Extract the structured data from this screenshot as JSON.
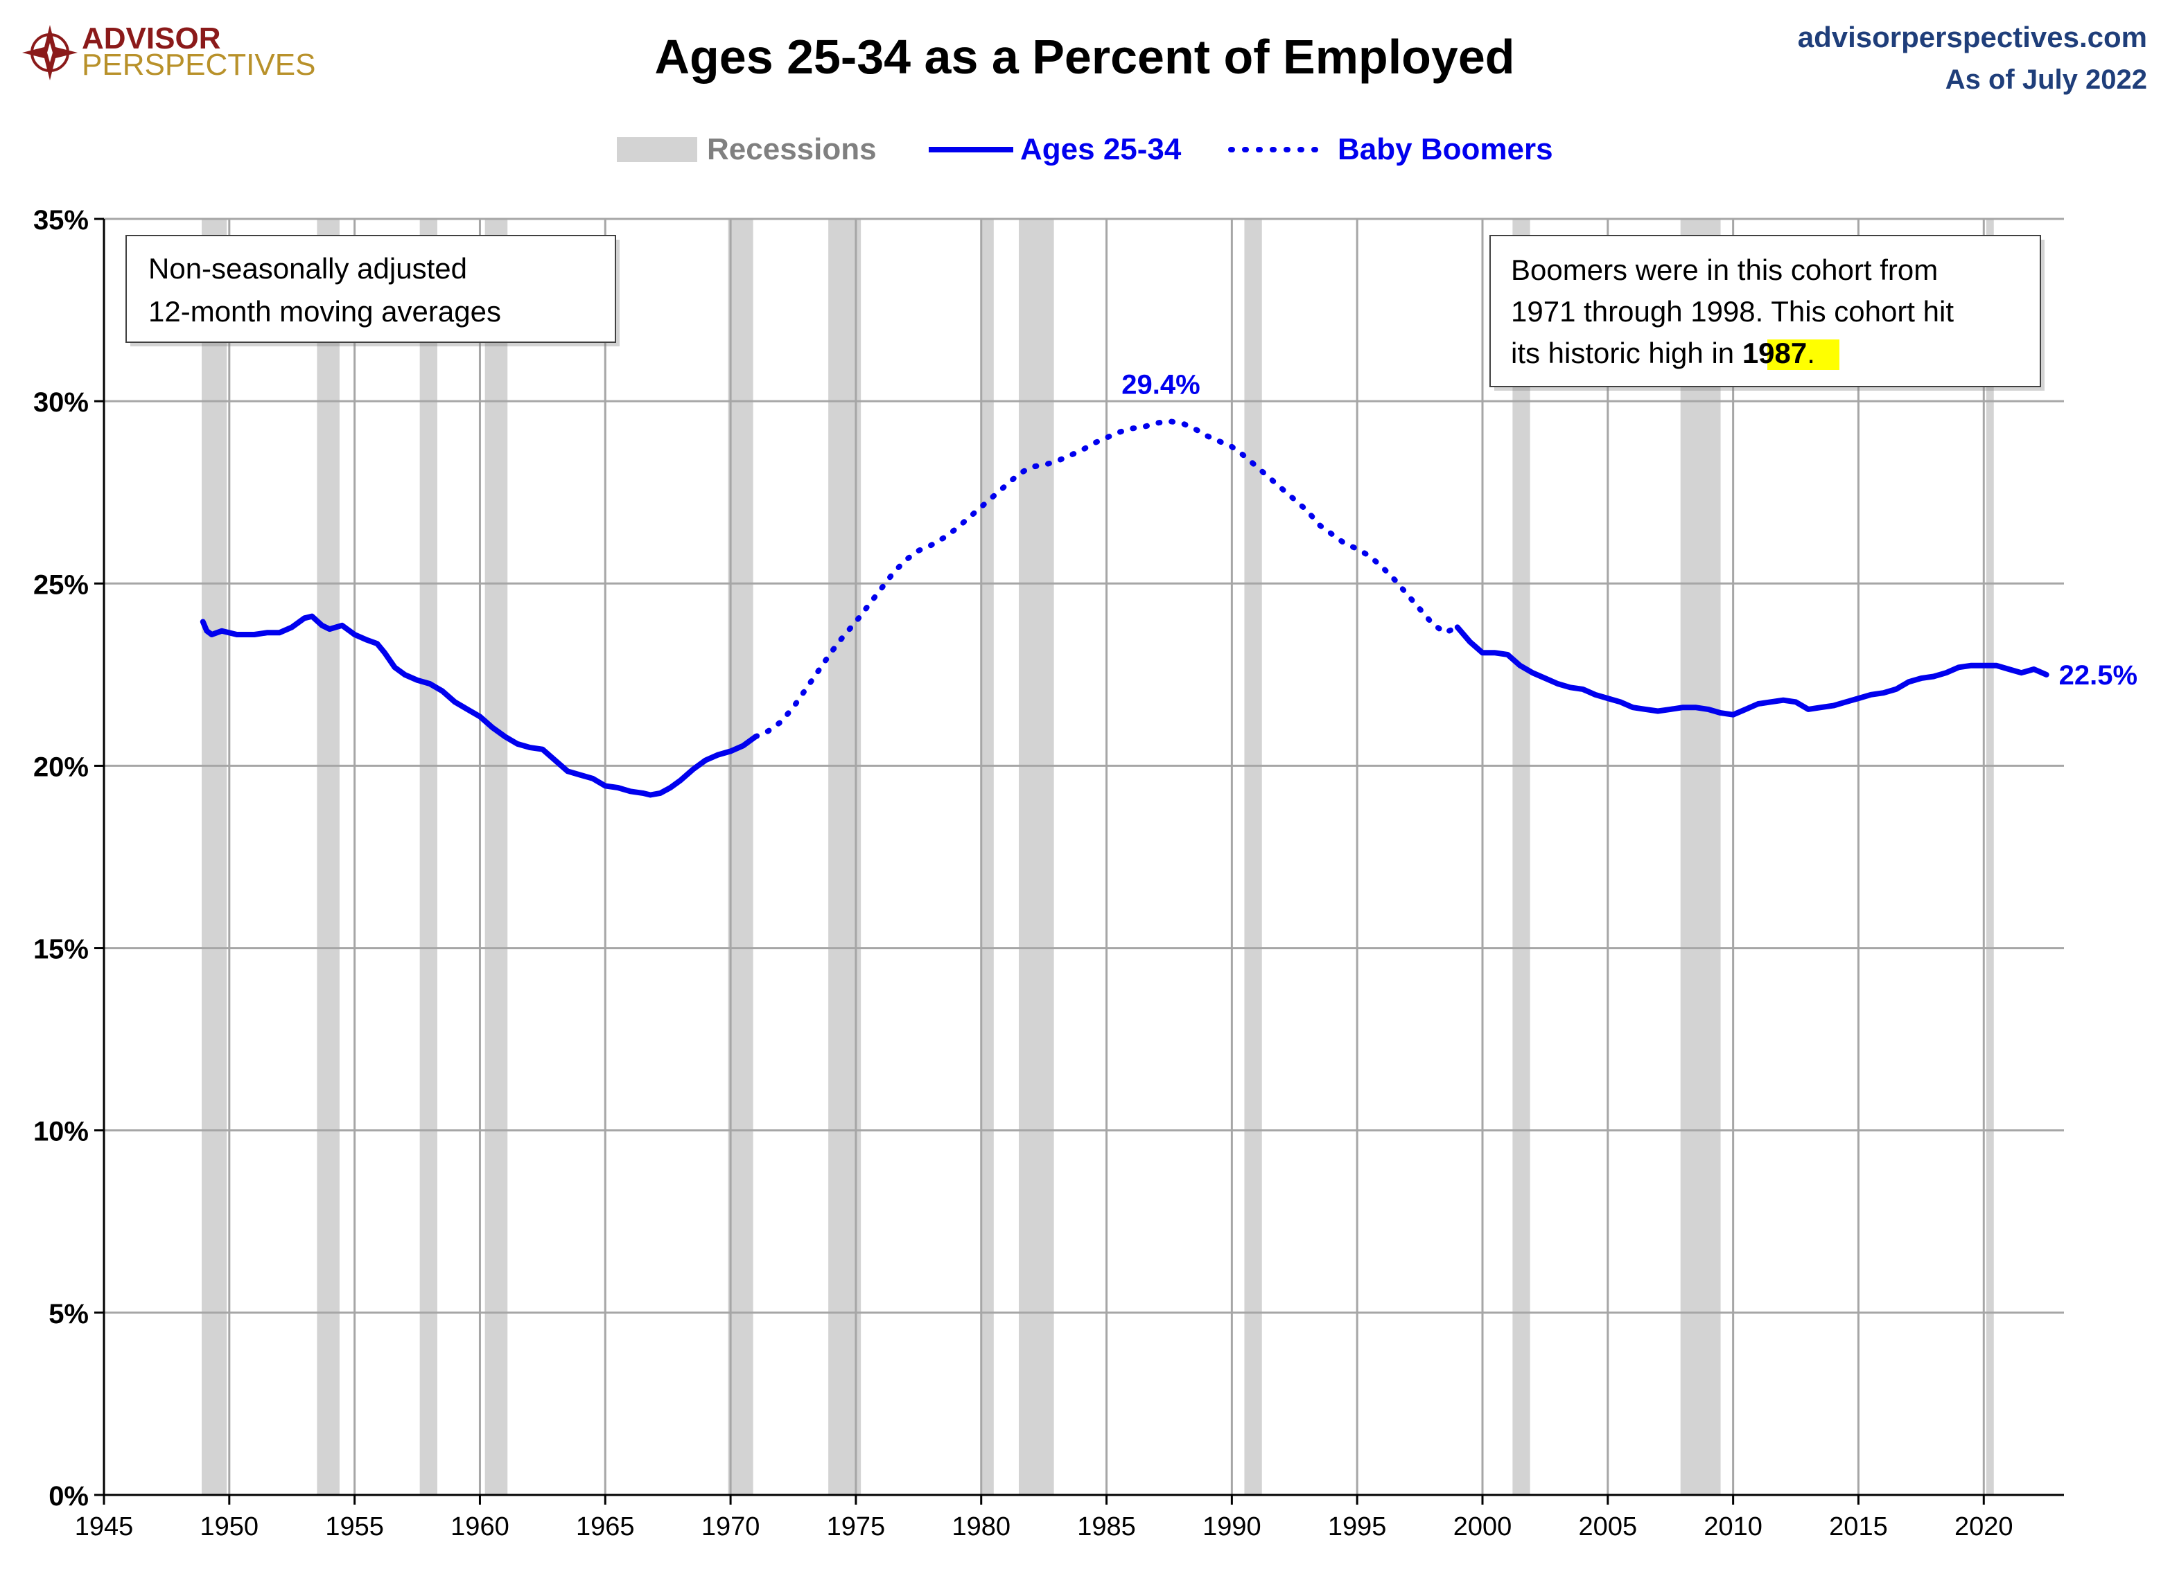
{
  "header": {
    "logo_line1": "ADVISOR",
    "logo_line2": "PERSPECTIVES",
    "site": "advisorperspectives.com",
    "as_of": "As of July 2022"
  },
  "legend": {
    "recessions": "Recessions",
    "ages": "Ages 25-34",
    "boomers": "Baby Boomers"
  },
  "notes": {
    "left_line1": "Non-seasonally adjusted",
    "left_line2": "12-month moving averages",
    "right_line1": "Boomers were in this cohort from",
    "right_line2": "1971 through 1998. This cohort hit",
    "right_line3_prefix": "its historic high in ",
    "right_line3_highlight": "1987",
    "right_line3_suffix": "."
  },
  "colors": {
    "series": "#0000ee",
    "recession": "#d3d3d3",
    "grid": "#a6a6a6",
    "logo_red": "#8b1a1a",
    "logo_gold": "#b8912a",
    "site_blue": "#1f3e7a",
    "highlight": "#ffff00"
  },
  "chart_data": {
    "type": "line",
    "title": "Ages 25-34 as a Percent of Employed",
    "xlabel": "",
    "ylabel": "",
    "xlim": [
      1945,
      2023.2
    ],
    "ylim": [
      0,
      35
    ],
    "x_ticks": [
      "1945",
      "1950",
      "1955",
      "1960",
      "1965",
      "1970",
      "1975",
      "1980",
      "1985",
      "1990",
      "1995",
      "2000",
      "2005",
      "2010",
      "2015",
      "2020"
    ],
    "y_ticks": [
      "0%",
      "5%",
      "10%",
      "15%",
      "20%",
      "25%",
      "30%",
      "35%"
    ],
    "grid": true,
    "legend_position": "top",
    "recessions": [
      [
        1948.9,
        1949.9
      ],
      [
        1953.5,
        1954.4
      ],
      [
        1957.6,
        1958.3
      ],
      [
        1960.2,
        1961.1
      ],
      [
        1969.9,
        1970.9
      ],
      [
        1973.9,
        1975.2
      ],
      [
        1980.0,
        1980.5
      ],
      [
        1981.5,
        1982.9
      ],
      [
        1990.5,
        1991.2
      ],
      [
        2001.2,
        2001.9
      ],
      [
        2007.9,
        2009.5
      ],
      [
        2020.1,
        2020.4
      ]
    ],
    "series": [
      {
        "name": "Ages 25-34",
        "style": "solid",
        "points": [
          [
            1948.95,
            23.95
          ],
          [
            1949.1,
            23.7
          ],
          [
            1949.3,
            23.6
          ],
          [
            1949.7,
            23.7
          ],
          [
            1950.3,
            23.6
          ],
          [
            1951.0,
            23.6
          ],
          [
            1951.5,
            23.65
          ],
          [
            1952.0,
            23.65
          ],
          [
            1952.5,
            23.8
          ],
          [
            1953.0,
            24.05
          ],
          [
            1953.3,
            24.1
          ],
          [
            1953.7,
            23.85
          ],
          [
            1954.0,
            23.75
          ],
          [
            1954.5,
            23.85
          ],
          [
            1955.0,
            23.6
          ],
          [
            1955.5,
            23.45
          ],
          [
            1955.9,
            23.35
          ],
          [
            1956.2,
            23.1
          ],
          [
            1956.6,
            22.7
          ],
          [
            1957.0,
            22.5
          ],
          [
            1957.5,
            22.35
          ],
          [
            1958.0,
            22.25
          ],
          [
            1958.5,
            22.05
          ],
          [
            1959.0,
            21.75
          ],
          [
            1959.5,
            21.55
          ],
          [
            1960.0,
            21.35
          ],
          [
            1960.5,
            21.05
          ],
          [
            1961.0,
            20.8
          ],
          [
            1961.5,
            20.6
          ],
          [
            1962.0,
            20.5
          ],
          [
            1962.5,
            20.45
          ],
          [
            1963.0,
            20.15
          ],
          [
            1963.5,
            19.85
          ],
          [
            1964.0,
            19.75
          ],
          [
            1964.5,
            19.65
          ],
          [
            1965.0,
            19.45
          ],
          [
            1965.5,
            19.4
          ],
          [
            1966.0,
            19.3
          ],
          [
            1966.5,
            19.25
          ],
          [
            1966.8,
            19.2
          ],
          [
            1967.2,
            19.25
          ],
          [
            1967.6,
            19.4
          ],
          [
            1968.0,
            19.6
          ],
          [
            1968.5,
            19.9
          ],
          [
            1969.0,
            20.15
          ],
          [
            1969.5,
            20.3
          ],
          [
            1970.0,
            20.4
          ],
          [
            1970.5,
            20.55
          ],
          [
            1971.0,
            20.8
          ]
        ]
      },
      {
        "name": "Baby Boomers",
        "style": "dotted",
        "points": [
          [
            1971.0,
            20.8
          ],
          [
            1971.5,
            20.95
          ],
          [
            1972.0,
            21.2
          ],
          [
            1972.5,
            21.6
          ],
          [
            1973.0,
            22.1
          ],
          [
            1973.5,
            22.6
          ],
          [
            1974.0,
            23.1
          ],
          [
            1974.5,
            23.55
          ],
          [
            1975.0,
            23.95
          ],
          [
            1975.5,
            24.4
          ],
          [
            1976.0,
            24.85
          ],
          [
            1976.5,
            25.3
          ],
          [
            1977.0,
            25.65
          ],
          [
            1977.5,
            25.9
          ],
          [
            1978.0,
            26.05
          ],
          [
            1978.5,
            26.25
          ],
          [
            1979.0,
            26.5
          ],
          [
            1979.5,
            26.8
          ],
          [
            1980.0,
            27.1
          ],
          [
            1980.5,
            27.4
          ],
          [
            1981.0,
            27.7
          ],
          [
            1981.5,
            28.0
          ],
          [
            1982.0,
            28.2
          ],
          [
            1982.5,
            28.25
          ],
          [
            1983.0,
            28.35
          ],
          [
            1983.5,
            28.5
          ],
          [
            1984.0,
            28.65
          ],
          [
            1984.5,
            28.85
          ],
          [
            1985.0,
            29.0
          ],
          [
            1985.5,
            29.15
          ],
          [
            1986.0,
            29.25
          ],
          [
            1986.5,
            29.3
          ],
          [
            1987.0,
            29.4
          ],
          [
            1987.5,
            29.45
          ],
          [
            1988.0,
            29.4
          ],
          [
            1988.5,
            29.25
          ],
          [
            1989.0,
            29.05
          ],
          [
            1989.5,
            28.9
          ],
          [
            1990.0,
            28.75
          ],
          [
            1990.5,
            28.5
          ],
          [
            1991.0,
            28.2
          ],
          [
            1991.5,
            27.9
          ],
          [
            1992.0,
            27.6
          ],
          [
            1992.5,
            27.3
          ],
          [
            1993.0,
            27.0
          ],
          [
            1993.5,
            26.6
          ],
          [
            1994.0,
            26.35
          ],
          [
            1994.5,
            26.1
          ],
          [
            1995.0,
            25.95
          ],
          [
            1995.5,
            25.75
          ],
          [
            1996.0,
            25.45
          ],
          [
            1996.5,
            25.1
          ],
          [
            1997.0,
            24.7
          ],
          [
            1997.5,
            24.3
          ],
          [
            1998.0,
            23.9
          ],
          [
            1998.5,
            23.65
          ],
          [
            1999.0,
            23.8
          ]
        ]
      },
      {
        "name": "Ages 25-34",
        "style": "solid",
        "points": [
          [
            1999.0,
            23.8
          ],
          [
            1999.5,
            23.4
          ],
          [
            2000.0,
            23.1
          ],
          [
            2000.5,
            23.1
          ],
          [
            2001.0,
            23.05
          ],
          [
            2001.5,
            22.75
          ],
          [
            2002.0,
            22.55
          ],
          [
            2002.5,
            22.4
          ],
          [
            2003.0,
            22.25
          ],
          [
            2003.5,
            22.15
          ],
          [
            2004.0,
            22.1
          ],
          [
            2004.5,
            21.95
          ],
          [
            2005.0,
            21.85
          ],
          [
            2005.5,
            21.75
          ],
          [
            2006.0,
            21.6
          ],
          [
            2006.5,
            21.55
          ],
          [
            2007.0,
            21.5
          ],
          [
            2007.5,
            21.55
          ],
          [
            2008.0,
            21.6
          ],
          [
            2008.5,
            21.6
          ],
          [
            2009.0,
            21.55
          ],
          [
            2009.5,
            21.45
          ],
          [
            2010.0,
            21.4
          ],
          [
            2010.5,
            21.55
          ],
          [
            2011.0,
            21.7
          ],
          [
            2011.5,
            21.75
          ],
          [
            2012.0,
            21.8
          ],
          [
            2012.5,
            21.75
          ],
          [
            2013.0,
            21.55
          ],
          [
            2013.5,
            21.6
          ],
          [
            2014.0,
            21.65
          ],
          [
            2014.5,
            21.75
          ],
          [
            2015.0,
            21.85
          ],
          [
            2015.5,
            21.95
          ],
          [
            2016.0,
            22.0
          ],
          [
            2016.5,
            22.1
          ],
          [
            2017.0,
            22.3
          ],
          [
            2017.5,
            22.4
          ],
          [
            2018.0,
            22.45
          ],
          [
            2018.5,
            22.55
          ],
          [
            2019.0,
            22.7
          ],
          [
            2019.5,
            22.75
          ],
          [
            2020.0,
            22.75
          ],
          [
            2020.5,
            22.75
          ],
          [
            2021.0,
            22.65
          ],
          [
            2021.5,
            22.55
          ],
          [
            2022.0,
            22.65
          ],
          [
            2022.5,
            22.5
          ]
        ]
      }
    ],
    "annotations": [
      {
        "text": "29.4%",
        "x": 1987.5,
        "y": 29.4
      },
      {
        "text": "22.5%",
        "x": 2022.5,
        "y": 22.5
      }
    ]
  }
}
